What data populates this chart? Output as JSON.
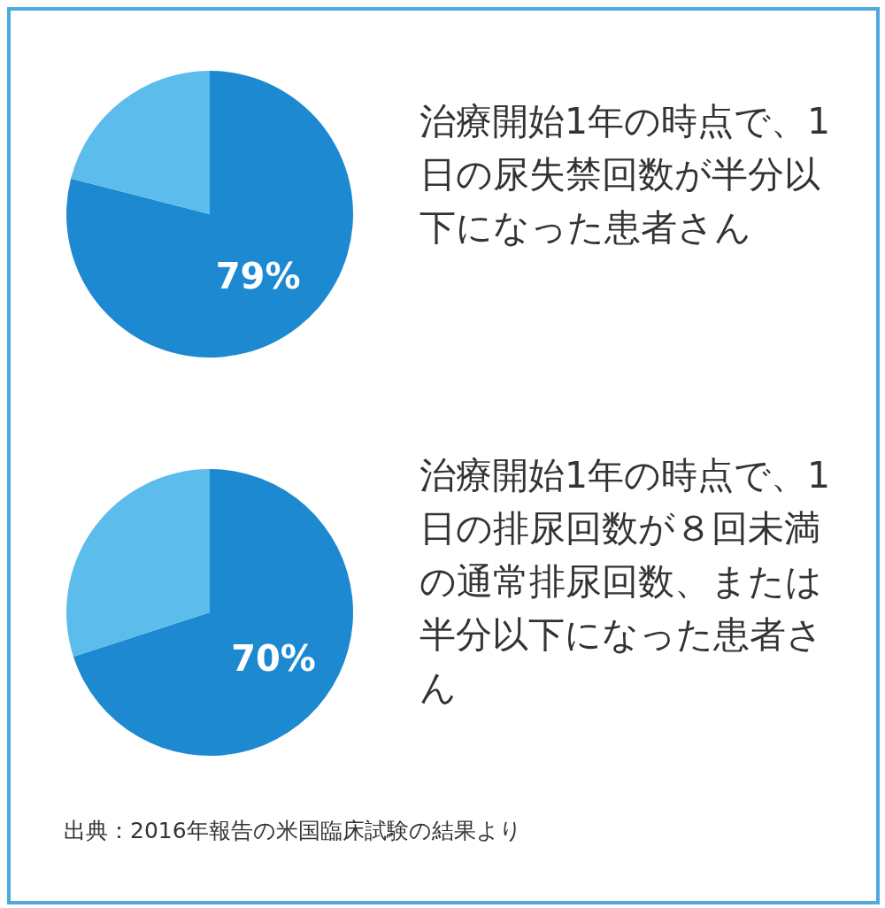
{
  "chart_data": [
    {
      "type": "pie",
      "title": "治療開始1年の時点で、1日の尿失禁回数が半分以下になった患者さん",
      "categories": [
        null,
        null
      ],
      "values": [
        79,
        21
      ],
      "colors": [
        "#1c89d0",
        "#5cbcec"
      ],
      "value_labels": [
        "79%",
        null
      ]
    },
    {
      "type": "pie",
      "title": "治療開始1年の時点で、1日の排尿回数が８回未満の通常排尿回数、または半分以下になった患者さん",
      "categories": [
        null,
        null
      ],
      "values": [
        70,
        30
      ],
      "colors": [
        "#1c89d0",
        "#5cbcec"
      ],
      "value_labels": [
        "70%",
        null
      ],
      "annotations": [
        "出典：2016年報告の米国臨床試験の結果より"
      ]
    }
  ]
}
